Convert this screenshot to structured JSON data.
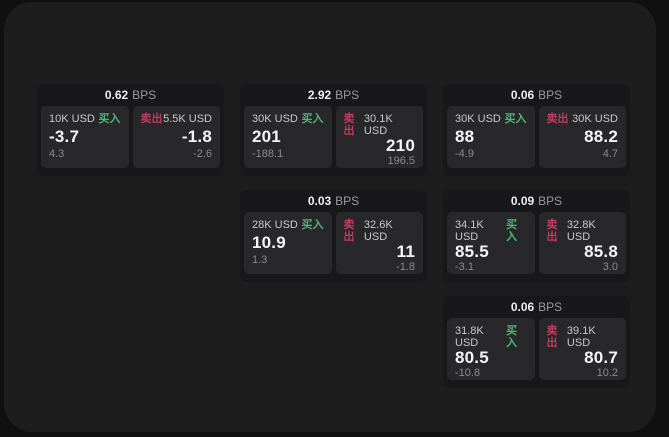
{
  "labels": {
    "buy": "买入",
    "sell": "卖出",
    "bps_unit": "BPS"
  },
  "colors": {
    "buy_accent": "#4fb577",
    "sell_accent": "#c43a5e",
    "panel_bg": "#1d1d1e",
    "card_bg": "#18181a",
    "tile_bg": "#28282a"
  },
  "cards": [
    {
      "bps": "0.62",
      "buy": {
        "notional": "10K USD",
        "price": "-3.7",
        "delta": "4.3"
      },
      "sell": {
        "notional": "5.5K USD",
        "price": "-1.8",
        "delta": "-2.6"
      }
    },
    {
      "bps": "2.92",
      "buy": {
        "notional": "30K USD",
        "price": "201",
        "delta": "-188.1"
      },
      "sell": {
        "notional": "30.1K USD",
        "price": "210",
        "delta": "196.5"
      }
    },
    {
      "bps": "0.06",
      "buy": {
        "notional": "30K USD",
        "price": "88",
        "delta": "-4.9"
      },
      "sell": {
        "notional": "30K USD",
        "price": "88.2",
        "delta": "4.7"
      }
    },
    {
      "bps": "0.03",
      "buy": {
        "notional": "28K USD",
        "price": "10.9",
        "delta": "1.3"
      },
      "sell": {
        "notional": "32.6K USD",
        "price": "11",
        "delta": "-1.8"
      }
    },
    {
      "bps": "0.09",
      "buy": {
        "notional": "34.1K USD",
        "price": "85.5",
        "delta": "-3.1"
      },
      "sell": {
        "notional": "32.8K USD",
        "price": "85.8",
        "delta": "3.0"
      }
    },
    {
      "bps": "0.06",
      "buy": {
        "notional": "31.8K USD",
        "price": "80.5",
        "delta": "-10.8"
      },
      "sell": {
        "notional": "39.1K USD",
        "price": "80.7",
        "delta": "10.2"
      }
    }
  ]
}
